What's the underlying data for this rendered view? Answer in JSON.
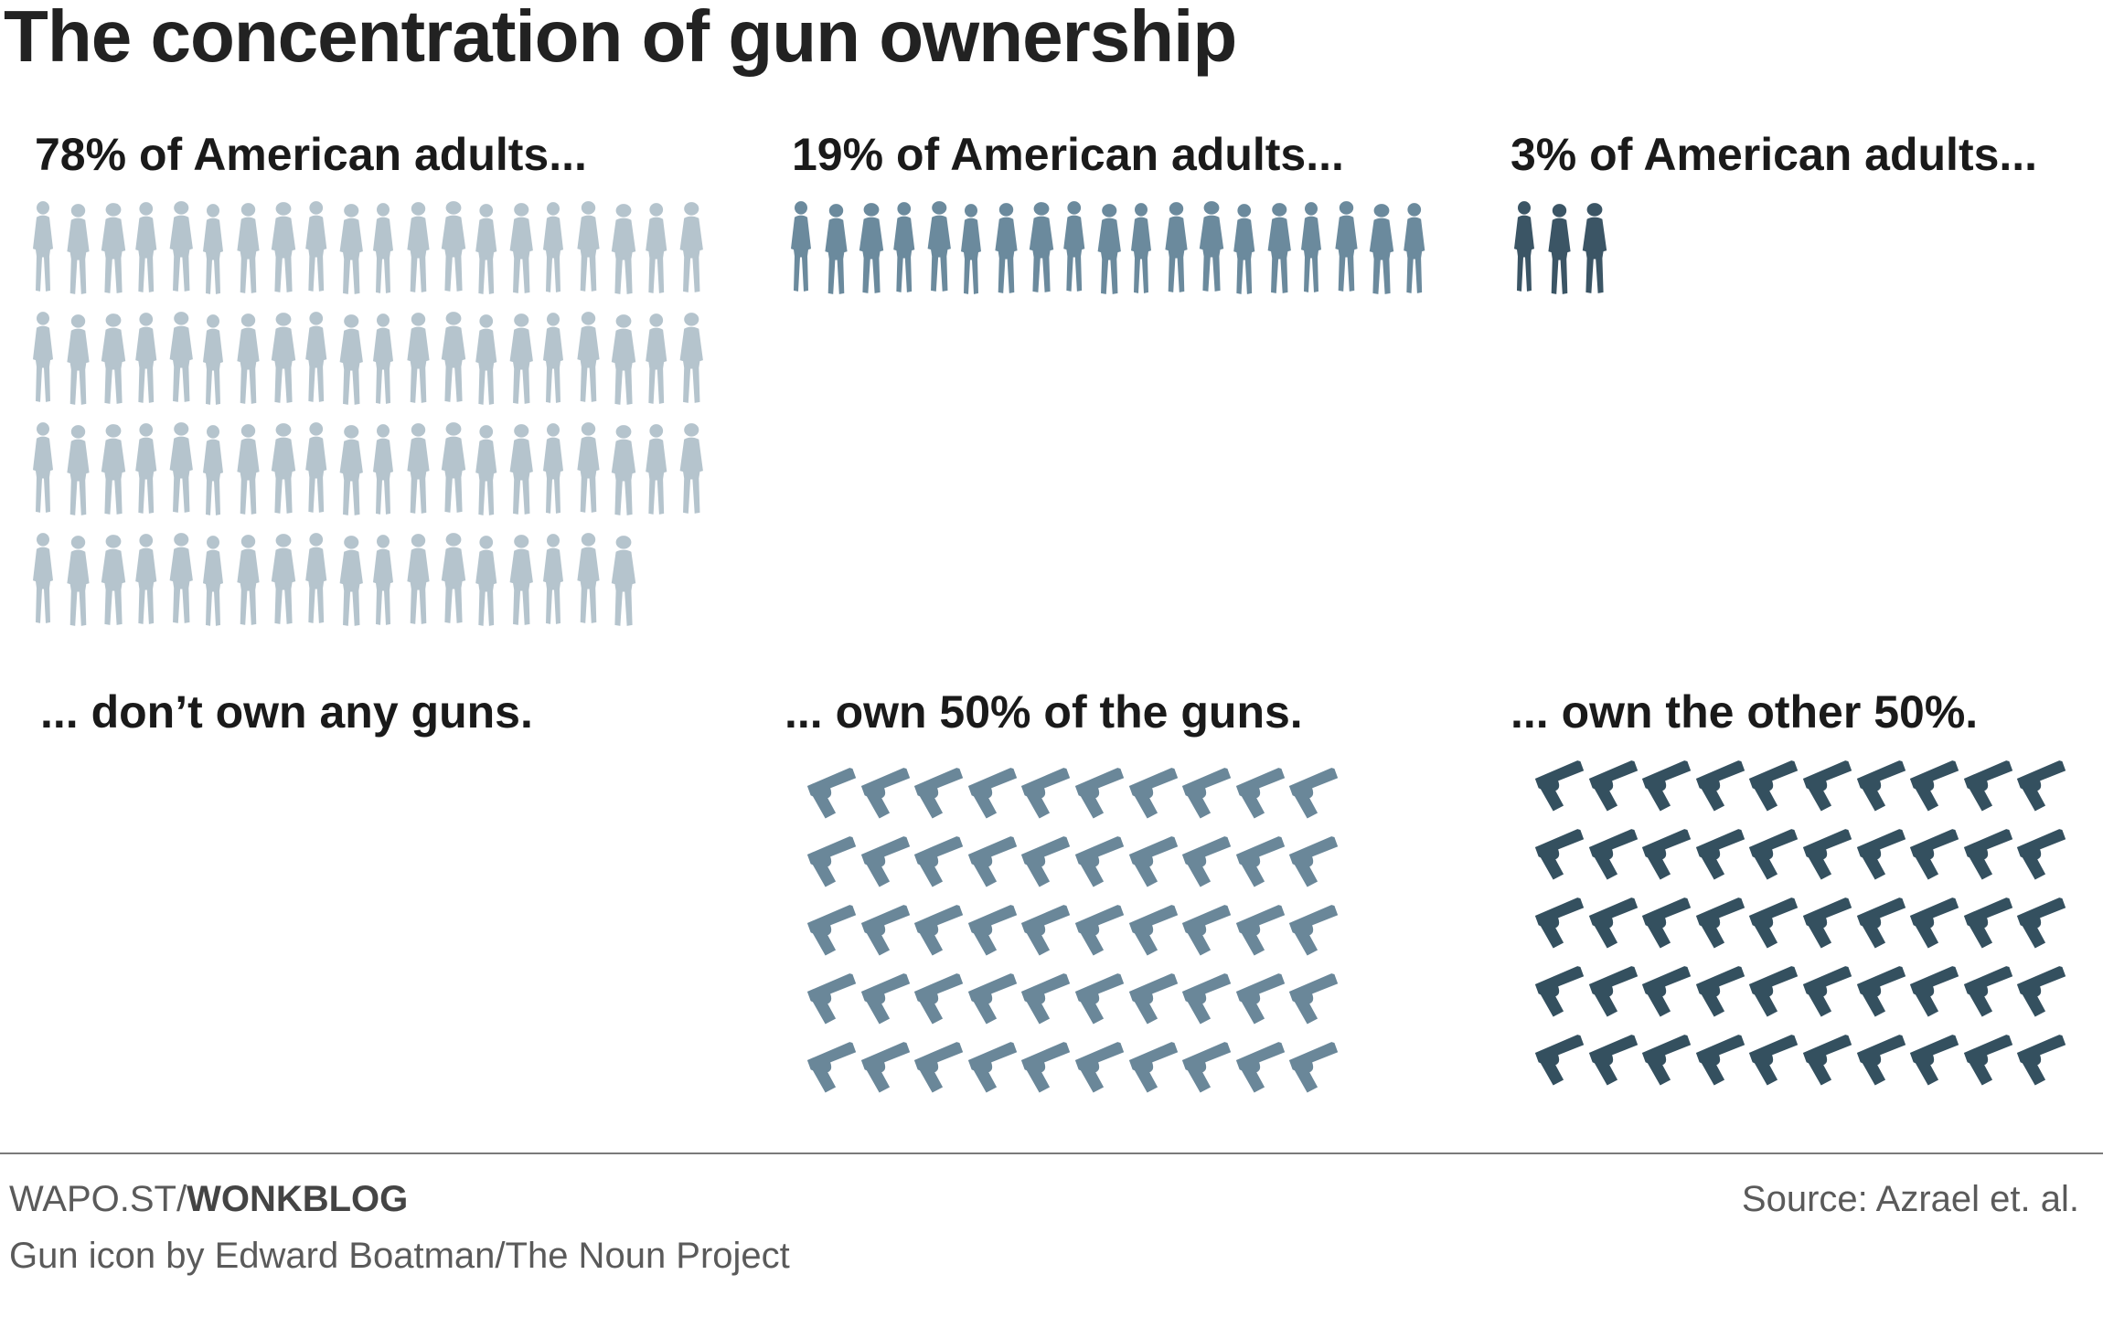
{
  "title": "The concentration of gun ownership",
  "groups": [
    {
      "header": "78% of American adults...",
      "label": "... don’t own any guns.",
      "people": 78,
      "guns": 0,
      "person_color": "#b5c4cd",
      "gun_color": ""
    },
    {
      "header": "19% of American adults...",
      "label": "... own 50% of the guns.",
      "people": 19,
      "guns": 50,
      "person_color": "#6b8a9d",
      "gun_color": "#6a8799"
    },
    {
      "header": "3% of American adults...",
      "label": "... own the other 50%.",
      "people": 3,
      "guns": 50,
      "person_color": "#3b5565",
      "gun_color": "#34505f"
    }
  ],
  "footer": {
    "site_prefix": "WAPO.ST/",
    "site_bold": "WONKBLOG",
    "credit": "Gun icon by Edward Boatman/The Noun Project",
    "source": "Source: Azrael et. al."
  },
  "chart_data": {
    "type": "pictogram",
    "title": "The concentration of gun ownership",
    "categories": [
      "78% of American adults...",
      "19% of American adults...",
      "3% of American adults..."
    ],
    "series": [
      {
        "name": "American adults (%)",
        "values": [
          78,
          19,
          3
        ]
      },
      {
        "name": "Share of guns (%)",
        "values": [
          0,
          50,
          50
        ]
      }
    ],
    "annotations": [
      "... don’t own any guns.",
      "... own 50% of the guns.",
      "... own the other 50%."
    ]
  }
}
